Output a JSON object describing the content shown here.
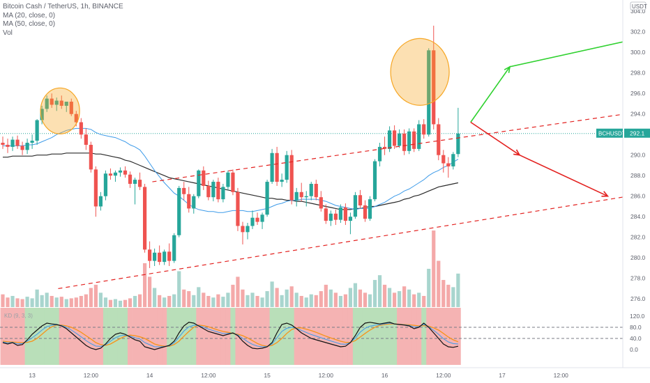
{
  "header": {
    "title": "Bitcoin Cash / TetherUS, 1h, BINANCE",
    "studies": [
      "MA (20, close, 0)",
      "MA (50, close, 0)",
      "Vol"
    ]
  },
  "chart_data": {
    "type": "candlestick",
    "symbol": "BCHUSDT",
    "last_price": "292.1",
    "currency": "USDT",
    "y_axis": {
      "range": [
        275.2,
        305.1
      ],
      "ticks": [
        "304.0",
        "302.0",
        "300.0",
        "298.0",
        "296.0",
        "294.0",
        "292.0",
        "290.0",
        "288.0",
        "286.0",
        "284.0",
        "282.0",
        "280.0",
        "278.0",
        "276.0"
      ]
    },
    "x_axis": {
      "ticks": [
        {
          "label": "13",
          "bar": 6
        },
        {
          "label": "12:00",
          "bar": 18
        },
        {
          "label": "14",
          "bar": 30
        },
        {
          "label": "12:00",
          "bar": 42
        },
        {
          "label": "15",
          "bar": 54
        },
        {
          "label": "12:00",
          "bar": 66
        },
        {
          "label": "16",
          "bar": 78
        },
        {
          "label": "12:00",
          "bar": 90
        },
        {
          "label": "17",
          "bar": 102
        },
        {
          "label": "12:00",
          "bar": 114
        }
      ]
    },
    "candles": [
      [
        291.2,
        291.8,
        290.6,
        291.0
      ],
      [
        291.0,
        291.6,
        290.2,
        290.8
      ],
      [
        290.8,
        291.8,
        290.4,
        291.5
      ],
      [
        291.5,
        291.9,
        290.6,
        290.9
      ],
      [
        290.9,
        291.3,
        290.0,
        290.5
      ],
      [
        290.5,
        291.6,
        290.1,
        291.2
      ],
      [
        291.2,
        292.0,
        290.6,
        291.4
      ],
      [
        291.4,
        293.5,
        291.0,
        293.4
      ],
      [
        293.4,
        294.8,
        293.0,
        294.5
      ],
      [
        294.5,
        295.8,
        294.2,
        295.5
      ],
      [
        295.5,
        296.0,
        294.6,
        294.9
      ],
      [
        294.9,
        295.6,
        294.3,
        295.3
      ],
      [
        295.3,
        295.8,
        294.5,
        294.8
      ],
      [
        294.8,
        295.2,
        294.2,
        295.2
      ],
      [
        295.2,
        295.5,
        293.8,
        294.0
      ],
      [
        294.0,
        294.3,
        292.8,
        293.2
      ],
      [
        293.2,
        293.6,
        291.6,
        292.0
      ],
      [
        292.0,
        292.6,
        290.5,
        291.0
      ],
      [
        291.0,
        291.3,
        288.3,
        288.6
      ],
      [
        288.6,
        288.9,
        284.0,
        285.0
      ],
      [
        285.0,
        286.4,
        284.6,
        286.0
      ],
      [
        286.0,
        288.5,
        285.6,
        288.2
      ],
      [
        288.2,
        288.7,
        287.6,
        288.0
      ],
      [
        288.0,
        288.5,
        287.4,
        288.3
      ],
      [
        288.3,
        288.8,
        287.9,
        288.5
      ],
      [
        288.5,
        288.9,
        287.8,
        288.1
      ],
      [
        288.1,
        288.4,
        286.8,
        287.2
      ],
      [
        287.2,
        287.8,
        285.2,
        287.6
      ],
      [
        287.6,
        288.3,
        286.6,
        286.9
      ],
      [
        286.9,
        287.2,
        280.5,
        280.8
      ],
      [
        280.8,
        281.6,
        279.0,
        279.7
      ],
      [
        279.7,
        280.9,
        279.2,
        280.5
      ],
      [
        280.5,
        281.2,
        279.3,
        279.6
      ],
      [
        279.6,
        280.8,
        279.3,
        280.6
      ],
      [
        280.6,
        281.4,
        279.2,
        279.7
      ],
      [
        279.7,
        282.4,
        279.5,
        282.2
      ],
      [
        282.2,
        287.0,
        282.0,
        286.8
      ],
      [
        286.8,
        287.4,
        285.6,
        286.2
      ],
      [
        286.2,
        286.9,
        284.4,
        284.8
      ],
      [
        284.8,
        286.2,
        284.3,
        286.0
      ],
      [
        286.0,
        288.6,
        285.8,
        288.5
      ],
      [
        288.5,
        288.9,
        286.6,
        287.0
      ],
      [
        287.0,
        287.5,
        285.6,
        285.9
      ],
      [
        285.9,
        287.6,
        285.5,
        287.4
      ],
      [
        287.4,
        287.8,
        285.4,
        285.7
      ],
      [
        285.7,
        287.2,
        285.4,
        286.9
      ],
      [
        286.9,
        288.5,
        286.6,
        288.3
      ],
      [
        288.3,
        288.6,
        286.1,
        286.4
      ],
      [
        286.4,
        286.8,
        282.6,
        283.1
      ],
      [
        283.1,
        283.5,
        281.3,
        282.5
      ],
      [
        282.5,
        283.4,
        281.8,
        283.1
      ],
      [
        283.1,
        284.6,
        282.8,
        283.9
      ],
      [
        283.9,
        284.4,
        283.2,
        283.5
      ],
      [
        283.5,
        284.4,
        282.8,
        284.2
      ],
      [
        284.2,
        287.6,
        284.0,
        287.4
      ],
      [
        287.4,
        290.6,
        287.2,
        290.2
      ],
      [
        290.2,
        290.8,
        287.0,
        287.4
      ],
      [
        287.4,
        288.2,
        286.9,
        287.6
      ],
      [
        287.6,
        290.4,
        287.3,
        290.0
      ],
      [
        290.0,
        290.5,
        285.2,
        285.6
      ],
      [
        285.6,
        286.8,
        285.0,
        286.4
      ],
      [
        286.4,
        287.3,
        285.5,
        285.9
      ],
      [
        285.9,
        286.5,
        285.0,
        286.0
      ],
      [
        286.0,
        287.4,
        285.6,
        287.2
      ],
      [
        287.2,
        287.6,
        285.6,
        285.9
      ],
      [
        285.9,
        286.5,
        284.5,
        284.8
      ],
      [
        284.8,
        285.2,
        283.3,
        283.6
      ],
      [
        283.6,
        284.6,
        283.1,
        284.3
      ],
      [
        284.3,
        284.7,
        283.2,
        283.7
      ],
      [
        283.7,
        285.2,
        283.4,
        284.9
      ],
      [
        284.9,
        285.3,
        283.2,
        283.6
      ],
      [
        283.6,
        284.4,
        282.3,
        284.0
      ],
      [
        284.0,
        286.4,
        283.8,
        286.1
      ],
      [
        286.1,
        286.6,
        284.8,
        285.1
      ],
      [
        285.1,
        285.6,
        283.5,
        283.8
      ],
      [
        283.8,
        286.0,
        283.6,
        285.7
      ],
      [
        285.7,
        289.6,
        285.5,
        289.4
      ],
      [
        289.4,
        291.2,
        288.9,
        290.8
      ],
      [
        290.8,
        291.8,
        290.0,
        290.6
      ],
      [
        290.6,
        292.8,
        290.3,
        292.4
      ],
      [
        292.4,
        292.9,
        290.6,
        290.9
      ],
      [
        290.9,
        292.5,
        290.7,
        292.1
      ],
      [
        292.1,
        292.5,
        290.0,
        290.4
      ],
      [
        290.4,
        292.6,
        290.1,
        292.3
      ],
      [
        292.3,
        292.6,
        290.3,
        290.6
      ],
      [
        290.6,
        293.4,
        290.4,
        293.0
      ],
      [
        293.0,
        293.5,
        291.6,
        292.0
      ],
      [
        292.0,
        300.4,
        291.8,
        300.2
      ],
      [
        300.2,
        302.6,
        292.5,
        293.0
      ],
      [
        293.0,
        293.6,
        289.5,
        290.0
      ],
      [
        290.0,
        290.5,
        288.3,
        289.2
      ],
      [
        289.2,
        289.8,
        287.8,
        288.9
      ],
      [
        288.9,
        290.3,
        288.6,
        290.1
      ],
      [
        290.1,
        294.6,
        289.8,
        292.1
      ]
    ],
    "ma20": [
      290.9,
      290.9,
      290.9,
      290.9,
      290.9,
      291.0,
      291.0,
      291.1,
      291.3,
      291.5,
      291.7,
      292.0,
      292.2,
      292.4,
      292.5,
      292.6,
      292.6,
      292.6,
      292.5,
      292.2,
      292.0,
      291.9,
      291.8,
      291.7,
      291.5,
      291.3,
      291.0,
      290.8,
      290.5,
      289.9,
      289.2,
      288.5,
      287.9,
      287.3,
      286.8,
      286.3,
      286.0,
      285.6,
      285.2,
      284.9,
      284.7,
      284.6,
      284.5,
      284.5,
      284.4,
      284.4,
      284.5,
      284.6,
      284.6,
      284.6,
      284.5,
      284.5,
      284.6,
      284.7,
      284.8,
      285.0,
      285.2,
      285.3,
      285.5,
      285.6,
      285.6,
      285.7,
      285.7,
      285.7,
      285.7,
      285.6,
      285.5,
      285.3,
      285.1,
      285.0,
      284.9,
      284.8,
      284.7,
      284.8,
      284.8,
      284.8,
      285.0,
      285.2,
      285.4,
      285.7,
      286.0,
      286.2,
      286.5,
      286.7,
      287.0,
      287.3,
      287.6,
      288.0,
      288.3,
      288.5,
      288.8,
      289.0,
      289.3,
      289.6
    ],
    "ma50": [
      289.8,
      289.8,
      289.9,
      289.9,
      289.9,
      289.9,
      289.9,
      290.0,
      290.0,
      290.0,
      290.1,
      290.1,
      290.1,
      290.2,
      290.2,
      290.2,
      290.2,
      290.2,
      290.2,
      290.1,
      290.1,
      290.0,
      289.9,
      289.8,
      289.7,
      289.5,
      289.4,
      289.2,
      289.0,
      288.8,
      288.6,
      288.4,
      288.2,
      288.0,
      287.8,
      287.7,
      287.6,
      287.5,
      287.4,
      287.3,
      287.2,
      287.1,
      287.0,
      286.9,
      286.8,
      286.7,
      286.6,
      286.5,
      286.4,
      286.3,
      286.2,
      286.1,
      286.0,
      285.9,
      285.8,
      285.8,
      285.7,
      285.7,
      285.6,
      285.6,
      285.5,
      285.5,
      285.4,
      285.3,
      285.2,
      285.1,
      285.0,
      284.9,
      284.8,
      284.7,
      284.7,
      284.7,
      284.8,
      284.8,
      284.9,
      285.0,
      285.0,
      285.1,
      285.2,
      285.3,
      285.4,
      285.5,
      285.7,
      285.8,
      286.0,
      286.1,
      286.3,
      286.5,
      286.7,
      286.9,
      287.0,
      287.1,
      287.2,
      287.3
    ],
    "volume": [
      16,
      12,
      14,
      11,
      10,
      13,
      11,
      22,
      15,
      18,
      14,
      12,
      13,
      10,
      11,
      12,
      14,
      16,
      24,
      28,
      18,
      12,
      9,
      10,
      8,
      9,
      11,
      14,
      16,
      55,
      38,
      24,
      15,
      12,
      14,
      16,
      45,
      22,
      20,
      15,
      25,
      18,
      14,
      12,
      16,
      13,
      18,
      28,
      38,
      22,
      15,
      18,
      14,
      12,
      20,
      32,
      24,
      15,
      22,
      26,
      18,
      14,
      12,
      16,
      15,
      20,
      28,
      22,
      18,
      14,
      16,
      24,
      30,
      22,
      18,
      16,
      34,
      40,
      28,
      24,
      18,
      20,
      26,
      22,
      16,
      18,
      14,
      48,
      96,
      58,
      34,
      28,
      25,
      42
    ],
    "vol_colors": [
      "#f4a9a9",
      "#a8d5ce"
    ],
    "kd": {
      "label": "KD (9, 3, 3)",
      "levels": [
        "80.0",
        "40.0",
        "0.0"
      ],
      "ticks": [
        "120.0",
        "80.0",
        "40.0",
        "0.0"
      ],
      "k": [
        25,
        20,
        25,
        15,
        18,
        35,
        55,
        70,
        85,
        95,
        92,
        90,
        85,
        75,
        60,
        45,
        30,
        15,
        5,
        0,
        5,
        20,
        40,
        55,
        60,
        55,
        45,
        35,
        30,
        10,
        5,
        0,
        5,
        10,
        15,
        30,
        60,
        85,
        98,
        95,
        85,
        75,
        65,
        60,
        55,
        50,
        55,
        60,
        50,
        30,
        15,
        5,
        3,
        5,
        10,
        25,
        60,
        90,
        95,
        88,
        75,
        60,
        50,
        40,
        35,
        30,
        25,
        20,
        15,
        10,
        12,
        25,
        50,
        80,
        95,
        98,
        95,
        92,
        95,
        98,
        92,
        90,
        88,
        85,
        75,
        80,
        95,
        80,
        60,
        40,
        20,
        10,
        8,
        12
      ],
      "d": [
        30,
        28,
        27,
        26,
        25,
        26,
        30,
        40,
        55,
        70,
        82,
        88,
        88,
        85,
        80,
        72,
        62,
        50,
        38,
        25,
        18,
        15,
        20,
        30,
        40,
        48,
        52,
        50,
        46,
        40,
        30,
        20,
        15,
        12,
        12,
        18,
        30,
        48,
        65,
        80,
        88,
        86,
        82,
        76,
        70,
        65,
        62,
        58,
        55,
        50,
        42,
        32,
        22,
        15,
        12,
        15,
        25,
        40,
        58,
        72,
        78,
        78,
        73,
        68,
        62,
        55,
        48,
        42,
        36,
        30,
        26,
        26,
        32,
        45,
        58,
        70,
        80,
        87,
        90,
        92,
        92,
        91,
        90,
        89,
        87,
        85,
        86,
        84,
        78,
        70,
        58,
        45,
        35,
        28
      ],
      "bg": [
        "#f5b3b3",
        "#b9dfb9"
      ]
    },
    "channel": {
      "upper_x": [
        22,
        162
      ],
      "upper_y": [
        287.4,
        295.8
      ],
      "lower_x": [
        22,
        162
      ],
      "lower_y": [
        277.0,
        286.0
      ]
    },
    "circles": [
      {
        "bar": 11.7,
        "price": 294.3
      },
      {
        "bar": 85.2,
        "price": 298.1
      }
    ],
    "arrows": {
      "green": [
        [
          93,
          293.2
        ],
        [
          101,
          298.6
        ],
        [
          161,
          304.9
        ]
      ],
      "red": [
        [
          93,
          293.2
        ],
        [
          103,
          290.0
        ],
        [
          121,
          286.0
        ]
      ]
    },
    "colors": {
      "up": "#26a69a",
      "down": "#ef5350",
      "ma20": "#3d9be9",
      "ma50": "#2a2a2a",
      "green": "#2fd12f",
      "red": "#e3211f",
      "circle": "#f6a623",
      "text": "#5d606b"
    }
  }
}
